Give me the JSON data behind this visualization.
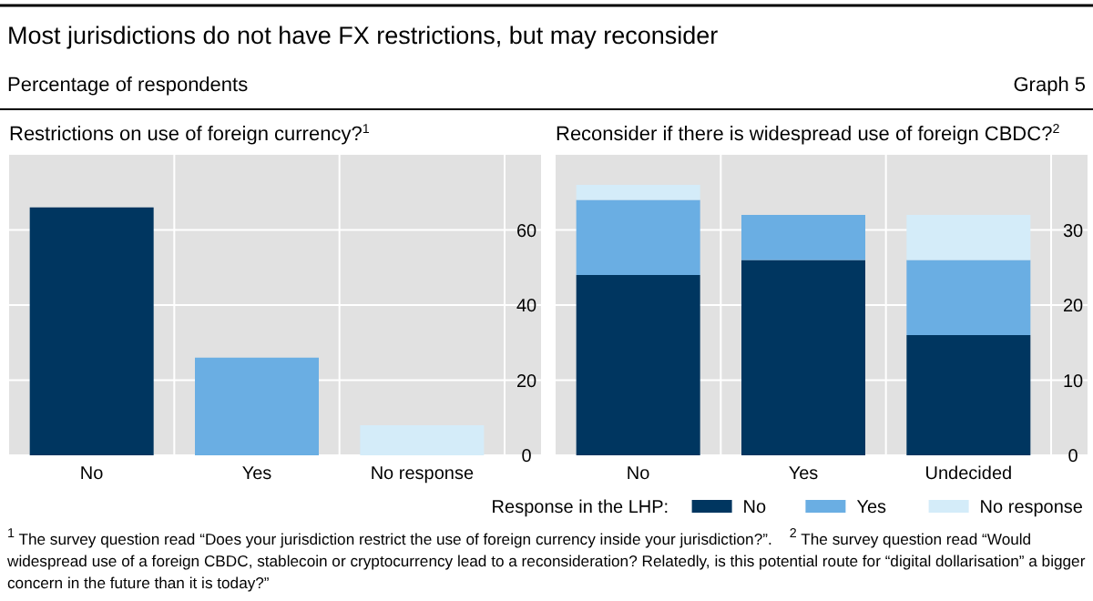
{
  "chart_data": [
    {
      "type": "bar",
      "title": "Restrictions on use of foreign currency?$^{1}$",
      "categories": [
        "No",
        "Yes",
        "No response"
      ],
      "values": [
        66,
        26,
        8
      ],
      "colors": [
        "#003660",
        "#6aaee3",
        "#d4ecf9"
      ],
      "ylim": [
        0,
        80
      ],
      "yticks": [
        0,
        20,
        40,
        60
      ],
      "grid": true,
      "annotations": [
        "Most jurisdictions do not have FX restrictions, but may reconsider",
        "Percentage of respondents",
        "Graph 5"
      ]
    },
    {
      "type": "bar",
      "title": "Reconsider if there is widespread use of foreign CBDC?$^{2}$",
      "categories": [
        "No",
        "Yes",
        "Undecided"
      ],
      "stacked": true,
      "ylim": [
        0,
        40
      ],
      "yticks": [
        0,
        10,
        20,
        30
      ],
      "grid": true,
      "legend": "bottom right",
      "legend_title": "Response in the LHP:",
      "series": [
        {
          "name": "No",
          "color": "#003660",
          "values": [
            24,
            26,
            16
          ]
        },
        {
          "name": "Yes",
          "color": "#6aaee3",
          "values": [
            10,
            6,
            10
          ]
        },
        {
          "name": "No response",
          "color": "#d4ecf9",
          "values": [
            2,
            null,
            6
          ]
        }
      ],
      "annotations": [
        "$^{1}$  The survey question read “Does your jurisdiction restrict the use of foreign currency inside your jurisdiction?”.",
        "$^{2}$  The survey question read “Would widespread use of a foreign CBDC, stablecoin or cryptocurrency lead to a reconsideration? Relatedly, is this potential route for “digital dollarisation” a bigger concern in the future than it is today?”"
      ]
    }
  ]
}
